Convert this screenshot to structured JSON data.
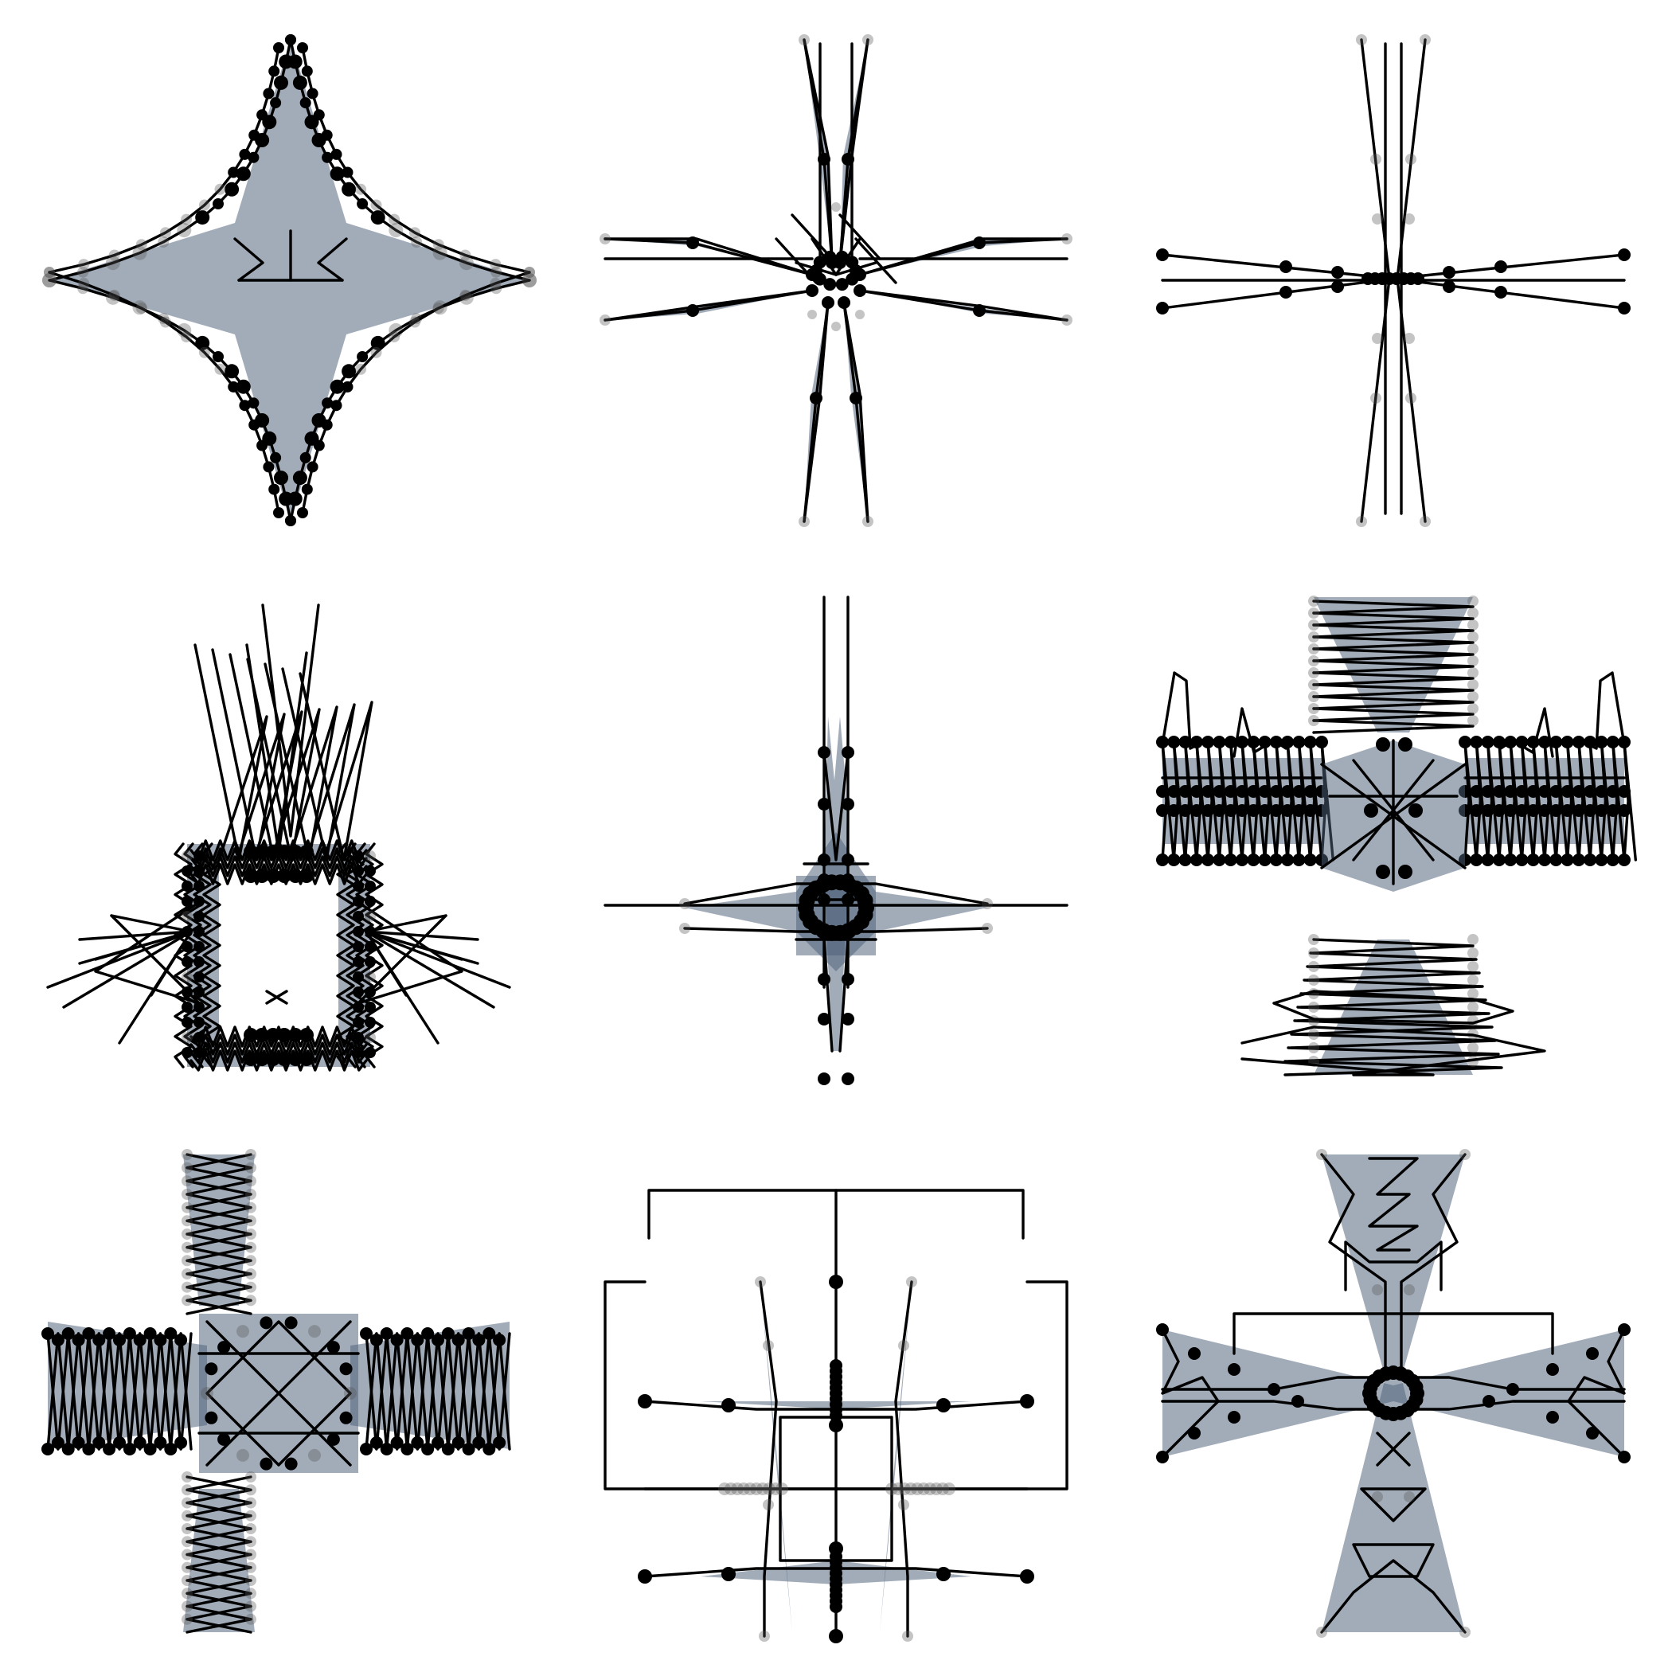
{
  "figure": {
    "rows": 3,
    "cols": 3,
    "colors": {
      "background": "#ffffff",
      "line": "#000000",
      "fill": "#4c5f78",
      "node": "#000000",
      "node_faint": "#555555"
    },
    "panels": [
      {
        "id": "star-four-point",
        "motif": "four-point-star-beaded"
      },
      {
        "id": "spoked-cross",
        "motif": "eight-spoke-cross"
      },
      {
        "id": "thin-cross",
        "motif": "thin-needle-cross"
      },
      {
        "id": "zigzag-frame",
        "motif": "zigzag-rectangle-frame"
      },
      {
        "id": "small-cross",
        "motif": "small-filled-cross"
      },
      {
        "id": "lattice-cross",
        "motif": "lattice-cross-wide"
      },
      {
        "id": "laced-cross",
        "motif": "laced-cross-dense"
      },
      {
        "id": "bracket-grid",
        "motif": "bracketed-grid-cross"
      },
      {
        "id": "hourglass-cross",
        "motif": "hourglass-cross"
      }
    ]
  }
}
